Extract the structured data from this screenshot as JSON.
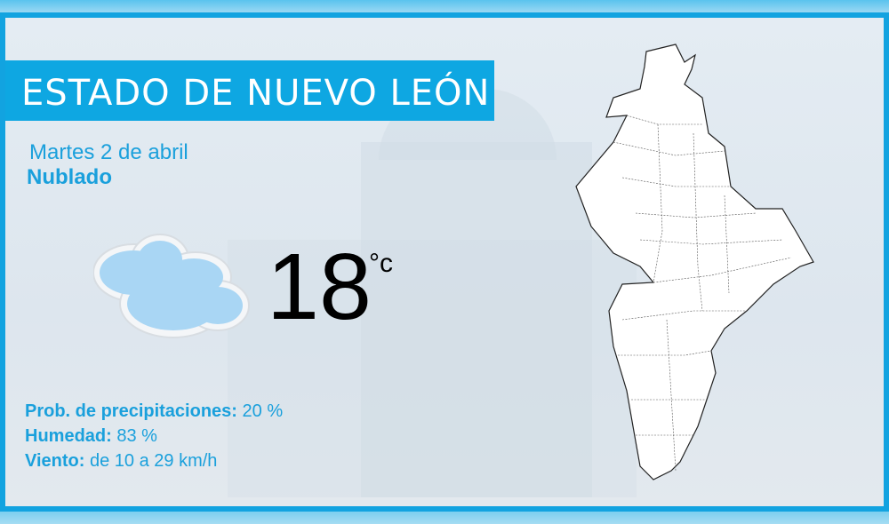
{
  "title": "ESTADO DE NUEVO LEÓN",
  "date": "Martes 2 de abril",
  "condition": "Nublado",
  "condition_icon": "cloud-icon",
  "temperature": "18",
  "temperature_unit": "°c",
  "details": {
    "precip_label": "Prob. de precipitaciones:",
    "precip_value": "20 %",
    "humidity_label": "Humedad:",
    "humidity_value": "83 %",
    "wind_label": "Viento:",
    "wind_value": "de 10 a 29 km/h"
  },
  "colors": {
    "accent": "#0ea7e2",
    "text_blue": "#1aa0dc"
  }
}
